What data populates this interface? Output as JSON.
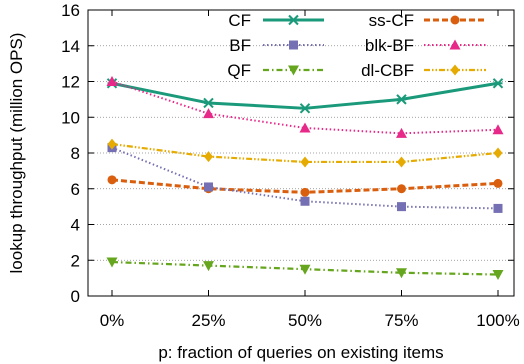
{
  "chart_data": {
    "type": "line",
    "xlabel": "p: fraction of queries on existing items",
    "ylabel": "lookup throughput (million OPS)",
    "categories": [
      "0%",
      "25%",
      "50%",
      "75%",
      "100%"
    ],
    "ylim": [
      0,
      16
    ],
    "yticks": [
      0,
      2,
      4,
      6,
      8,
      10,
      12,
      14,
      16
    ],
    "grid": "horizontal dotted",
    "legend_position": "top (inside)",
    "series": [
      {
        "name": "CF",
        "values": [
          11.9,
          10.8,
          10.5,
          11.0,
          11.9
        ],
        "color": "#1a9a7a",
        "marker": "cross",
        "dash": "solid"
      },
      {
        "name": "ss-CF",
        "values": [
          6.5,
          6.0,
          5.8,
          6.0,
          6.3
        ],
        "color": "#d95f0e",
        "marker": "circle",
        "dash": "dashed"
      },
      {
        "name": "BF",
        "values": [
          8.3,
          6.1,
          5.3,
          5.0,
          4.9
        ],
        "color": "#7570b3",
        "marker": "square",
        "dash": "dotted"
      },
      {
        "name": "blk-BF",
        "values": [
          12.0,
          10.2,
          9.4,
          9.1,
          9.3
        ],
        "color": "#e7298a",
        "marker": "triangle-up",
        "dash": "dotted"
      },
      {
        "name": "QF",
        "values": [
          1.9,
          1.7,
          1.5,
          1.3,
          1.2
        ],
        "color": "#66a61e",
        "marker": "triangle-down",
        "dash": "dashdot"
      },
      {
        "name": "dl-CBF",
        "values": [
          8.5,
          7.8,
          7.5,
          7.5,
          8.0
        ],
        "color": "#e6ab02",
        "marker": "diamond",
        "dash": "dashdotdot"
      }
    ]
  }
}
